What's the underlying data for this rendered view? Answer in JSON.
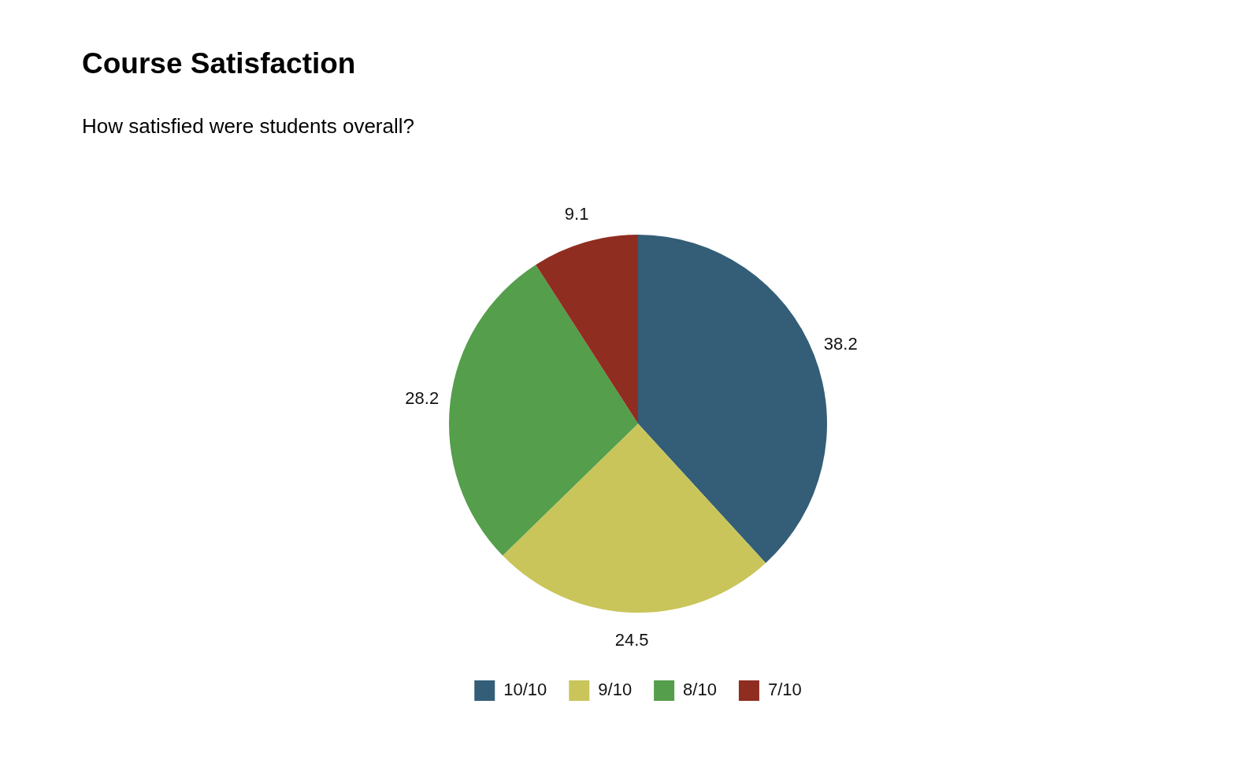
{
  "chart_data": {
    "type": "pie",
    "title": "Course Satisfaction",
    "subtitle": "How satisfied were students overall?",
    "categories": [
      "10/10",
      "9/10",
      "8/10",
      "7/10"
    ],
    "values": [
      38.2,
      24.5,
      28.2,
      9.1
    ],
    "colors": [
      "#345e77",
      "#c9c55a",
      "#559e4b",
      "#8f2d20"
    ],
    "data_labels": true,
    "legend": "bottom"
  }
}
